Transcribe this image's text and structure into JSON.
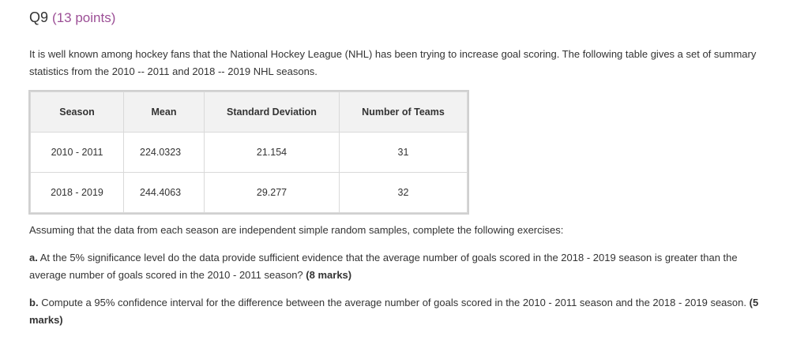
{
  "question": {
    "label": "Q9",
    "points": "(13 points)"
  },
  "intro": "It is well known among hockey fans that the National Hockey League (NHL) has been trying to increase goal scoring. The following table gives a set of summary statistics from the 2010 -- 2011 and 2018 -- 2019 NHL seasons.",
  "table": {
    "headers": [
      "Season",
      "Mean",
      "Standard Deviation",
      "Number of Teams"
    ],
    "rows": [
      [
        "2010 - 2011",
        "224.0323",
        "21.154",
        "31"
      ],
      [
        "2018 - 2019",
        "244.4063",
        "29.277",
        "32"
      ]
    ]
  },
  "assumption": "Assuming that the data from each season are independent simple random samples, complete the following exercises:",
  "part_a": {
    "label": "a.",
    "text": "At the 5% significance level do the data provide sufficient evidence that the average number of goals scored in the 2018 - 2019 season is greater than the average number of goals scored in the 2010 - 2011 season?",
    "marks": "(8 marks)"
  },
  "part_b": {
    "label": "b.",
    "text": "Compute a 95% confidence interval for the difference between the average number of goals scored in the 2010 - 2011 season and the 2018 - 2019 season.",
    "marks": "(5 marks)"
  }
}
